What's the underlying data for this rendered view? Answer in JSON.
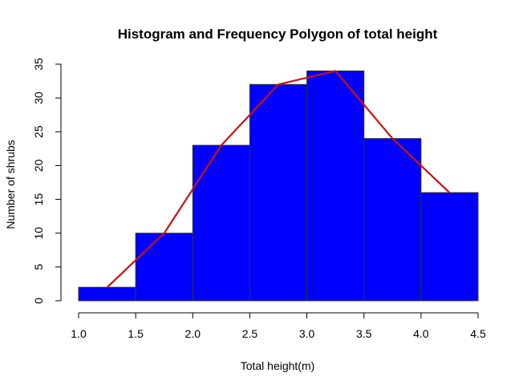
{
  "chart_data": {
    "type": "bar",
    "title": "Histogram and Frequency Polygon of total height",
    "xlabel": "Total height(m)",
    "ylabel": "Number of shrubs",
    "bins": [
      {
        "start": 1.0,
        "end": 1.5,
        "count": 2
      },
      {
        "start": 1.5,
        "end": 2.0,
        "count": 10
      },
      {
        "start": 2.0,
        "end": 2.5,
        "count": 23
      },
      {
        "start": 2.5,
        "end": 3.0,
        "count": 32
      },
      {
        "start": 3.0,
        "end": 3.5,
        "count": 34
      },
      {
        "start": 3.5,
        "end": 4.0,
        "count": 24
      },
      {
        "start": 4.0,
        "end": 4.5,
        "count": 16
      }
    ],
    "polygon": {
      "x": [
        1.25,
        1.75,
        2.25,
        2.75,
        3.25,
        3.75,
        4.25
      ],
      "y": [
        2,
        10,
        23,
        32,
        34,
        24,
        16
      ],
      "color": "#cc1111"
    },
    "bar_color": "#0000ff",
    "bar_border_color": "#333333",
    "xlim": [
      1.0,
      4.5
    ],
    "ylim": [
      0,
      35
    ],
    "xticks": [
      "1.0",
      "1.5",
      "2.0",
      "2.5",
      "3.0",
      "3.5",
      "4.0",
      "4.5"
    ],
    "yticks": [
      "0",
      "5",
      "10",
      "15",
      "20",
      "25",
      "30",
      "35"
    ],
    "grid": false
  }
}
